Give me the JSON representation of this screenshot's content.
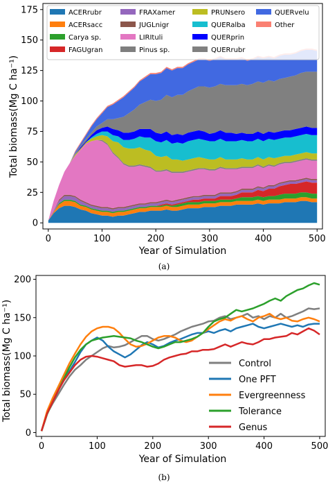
{
  "chart_data": [
    {
      "type": "area",
      "panel_label": "(a)",
      "xlabel": "Year of Simulation",
      "ylabel": "Total biomass(Mg C ha⁻¹)",
      "xlim": [
        -10,
        510
      ],
      "ylim": [
        -5,
        180
      ],
      "xticks": [
        0,
        100,
        200,
        300,
        400,
        500
      ],
      "yticks": [
        0,
        25,
        50,
        75,
        100,
        125,
        150,
        175
      ],
      "grid": false,
      "legend": "top",
      "x": [
        0,
        10,
        20,
        30,
        40,
        50,
        60,
        70,
        80,
        90,
        100,
        110,
        120,
        130,
        140,
        150,
        160,
        170,
        180,
        190,
        200,
        210,
        220,
        230,
        240,
        250,
        260,
        270,
        280,
        290,
        300,
        310,
        320,
        330,
        340,
        350,
        360,
        370,
        380,
        390,
        400,
        410,
        420,
        430,
        440,
        450,
        460,
        470,
        480,
        490,
        500
      ],
      "series": [
        {
          "name": "ACERrubr",
          "color": "#1f77b4",
          "values": [
            2,
            8,
            12,
            14,
            14,
            13,
            11,
            10,
            8,
            7,
            6,
            6,
            5,
            6,
            6,
            7,
            8,
            9,
            9,
            10,
            10,
            10,
            11,
            10,
            10,
            11,
            12,
            12,
            12,
            13,
            13,
            13,
            14,
            14,
            14,
            15,
            15,
            15,
            15,
            16,
            15,
            16,
            16,
            16,
            17,
            17,
            17,
            18,
            18,
            17,
            17
          ]
        },
        {
          "name": "ACERsacc",
          "color": "#ff7f0e",
          "values": [
            0,
            1,
            3,
            4,
            4,
            4,
            3,
            3,
            3,
            3,
            3,
            3,
            3,
            3,
            3,
            3,
            3,
            3,
            3,
            3,
            3,
            3,
            3,
            3,
            3,
            3,
            3,
            3,
            3,
            3,
            3,
            3,
            3,
            3,
            3,
            3,
            3,
            3,
            3,
            3,
            3,
            3,
            3,
            3,
            3,
            3,
            3,
            3,
            3,
            3,
            3
          ]
        },
        {
          "name": "Carya sp.",
          "color": "#2ca02c",
          "values": [
            0,
            0,
            1,
            1,
            1,
            1,
            1,
            1,
            1,
            1,
            1,
            1,
            1,
            1,
            1,
            1,
            1,
            1,
            1,
            1,
            1,
            1,
            1,
            1,
            2,
            2,
            2,
            2,
            2,
            2,
            2,
            2,
            2,
            2,
            2,
            2,
            3,
            3,
            3,
            3,
            3,
            3,
            3,
            4,
            4,
            4,
            4,
            4,
            4,
            4,
            4
          ]
        },
        {
          "name": "FAGUgran",
          "color": "#d62728",
          "values": [
            0,
            0,
            0,
            0,
            0,
            0,
            0,
            0,
            0,
            0,
            0,
            0,
            0,
            0,
            0,
            0,
            0,
            0,
            0,
            0,
            0,
            1,
            1,
            1,
            1,
            1,
            1,
            2,
            2,
            2,
            2,
            2,
            3,
            3,
            3,
            3,
            4,
            4,
            4,
            5,
            5,
            6,
            6,
            7,
            7,
            8,
            8,
            8,
            9,
            9,
            9
          ]
        },
        {
          "name": "FRAXamer",
          "color": "#9467bd",
          "values": [
            0,
            1,
            2,
            3,
            3,
            3,
            3,
            2,
            2,
            2,
            2,
            2,
            2,
            2,
            2,
            2,
            2,
            2,
            2,
            2,
            2,
            2,
            2,
            2,
            2,
            2,
            2,
            2,
            2,
            2,
            2,
            2,
            2,
            2,
            2,
            2,
            2,
            2,
            2,
            2,
            2,
            2,
            2,
            2,
            2,
            2,
            2,
            2,
            2,
            2,
            2
          ]
        },
        {
          "name": "JUGLnigr",
          "color": "#8c564b",
          "values": [
            0,
            0,
            1,
            1,
            1,
            1,
            1,
            1,
            1,
            1,
            1,
            1,
            1,
            1,
            1,
            1,
            1,
            1,
            1,
            1,
            1,
            1,
            1,
            1,
            1,
            1,
            1,
            1,
            1,
            1,
            1,
            1,
            1,
            1,
            1,
            1,
            1,
            1,
            1,
            1,
            1,
            1,
            1,
            1,
            1,
            1,
            1,
            1,
            1,
            1,
            1
          ]
        },
        {
          "name": "LIRItuli",
          "color": "#e377c2",
          "values": [
            0,
            8,
            12,
            19,
            26,
            33,
            41,
            48,
            52,
            54,
            54,
            51,
            45,
            40,
            35,
            32,
            31,
            31,
            30,
            28,
            25,
            24,
            24,
            23,
            22,
            21,
            21,
            21,
            22,
            21,
            20,
            20,
            20,
            19,
            19,
            18,
            17,
            17,
            17,
            17,
            16,
            16,
            15,
            15,
            15,
            14,
            15,
            15,
            15,
            15,
            15
          ]
        },
        {
          "name": "Pinus sp.",
          "color": "#7f7f7f",
          "values": [
            0,
            0,
            0,
            0,
            0,
            0,
            0,
            0,
            0,
            0,
            1,
            1,
            1,
            1,
            1,
            1,
            1,
            1,
            1,
            1,
            1,
            1,
            1,
            1,
            1,
            1,
            1,
            1,
            1,
            1,
            1,
            1,
            1,
            1,
            1,
            1,
            1,
            1,
            1,
            1,
            1,
            1,
            1,
            1,
            1,
            1,
            1,
            1,
            1,
            1,
            1
          ]
        },
        {
          "name": "PRUNsero",
          "color": "#bcbd22",
          "values": [
            0,
            0,
            0,
            0,
            0,
            1,
            1,
            1,
            2,
            3,
            4,
            6,
            9,
            12,
            13,
            14,
            14,
            14,
            13,
            13,
            12,
            11,
            11,
            10,
            10,
            9,
            9,
            9,
            9,
            8,
            8,
            8,
            8,
            7,
            7,
            7,
            7,
            6,
            6,
            6,
            6,
            6,
            6,
            5,
            5,
            5,
            5,
            5,
            5,
            5,
            5
          ]
        },
        {
          "name": "QUERalba",
          "color": "#17becf",
          "values": [
            0,
            0,
            0,
            0,
            0,
            0,
            0,
            0,
            1,
            2,
            3,
            4,
            5,
            5,
            6,
            7,
            8,
            9,
            10,
            11,
            12,
            12,
            13,
            13,
            14,
            14,
            15,
            15,
            15,
            15,
            15,
            15,
            15,
            15,
            15,
            15,
            15,
            15,
            15,
            15,
            15,
            15,
            15,
            15,
            15,
            15,
            15,
            15,
            15,
            15,
            15
          ]
        },
        {
          "name": "QUERprin",
          "color": "#0000ff",
          "values": [
            0,
            0,
            0,
            0,
            0,
            0,
            1,
            1,
            2,
            3,
            3,
            4,
            5,
            5,
            6,
            6,
            6,
            6,
            7,
            7,
            7,
            7,
            7,
            7,
            7,
            7,
            7,
            7,
            7,
            7,
            6,
            7,
            7,
            7,
            7,
            6,
            6,
            6,
            6,
            6,
            6,
            6,
            6,
            6,
            6,
            6,
            6,
            6,
            6,
            6,
            6
          ]
        },
        {
          "name": "QUERrubr",
          "color": "#808080",
          "values": [
            0,
            0,
            0,
            0,
            0,
            1,
            1,
            2,
            2,
            3,
            4,
            6,
            8,
            10,
            13,
            16,
            18,
            20,
            22,
            24,
            26,
            28,
            30,
            31,
            32,
            33,
            34,
            35,
            36,
            37,
            38,
            38,
            38,
            39,
            39,
            40,
            40,
            40,
            41,
            41,
            42,
            42,
            42,
            43,
            43,
            44,
            44,
            45,
            45,
            46,
            46
          ]
        },
        {
          "name": "QUERvelu",
          "color": "#4169e1",
          "values": [
            0,
            0,
            0,
            0,
            0,
            1,
            2,
            3,
            5,
            6,
            8,
            10,
            12,
            14,
            16,
            17,
            18,
            19,
            20,
            21,
            22,
            22,
            22,
            22,
            22,
            22,
            22,
            22,
            22,
            22,
            22,
            22,
            22,
            21,
            21,
            21,
            21,
            20,
            20,
            20,
            20,
            19,
            19,
            19,
            19,
            18,
            18,
            18,
            18,
            18,
            17
          ]
        },
        {
          "name": "Other",
          "color": "#fa8072",
          "values": [
            0,
            0,
            0,
            0,
            0,
            1,
            1,
            1,
            1,
            1,
            1,
            1,
            1,
            1,
            1,
            1,
            1,
            1,
            1,
            1,
            1,
            1,
            1,
            1,
            1,
            1,
            1,
            1,
            1,
            1,
            1,
            1,
            1,
            1,
            1,
            1,
            1,
            1,
            1,
            1,
            1,
            1,
            1,
            1,
            1,
            1,
            1,
            1,
            1,
            1,
            1
          ]
        }
      ]
    },
    {
      "type": "line",
      "panel_label": "(b)",
      "xlabel": "Year of Simulation",
      "ylabel": "Total biomass(Mg C ha⁻¹)",
      "xlim": [
        -10,
        510
      ],
      "ylim": [
        -5,
        205
      ],
      "xticks": [
        0,
        100,
        200,
        300,
        400,
        500
      ],
      "yticks": [
        0,
        50,
        100,
        150,
        200
      ],
      "grid": false,
      "legend": "center-right",
      "x": [
        0,
        10,
        20,
        30,
        40,
        50,
        60,
        70,
        80,
        90,
        100,
        110,
        120,
        130,
        140,
        150,
        160,
        170,
        180,
        190,
        200,
        210,
        220,
        230,
        240,
        250,
        260,
        270,
        280,
        290,
        300,
        310,
        320,
        330,
        340,
        350,
        360,
        370,
        380,
        390,
        400,
        410,
        420,
        430,
        440,
        450,
        460,
        470,
        480,
        490,
        500
      ],
      "series": [
        {
          "name": "Control",
          "color": "#7f7f7f",
          "values": [
            2,
            25,
            38,
            50,
            62,
            73,
            82,
            88,
            95,
            100,
            105,
            110,
            113,
            111,
            112,
            114,
            118,
            122,
            126,
            126,
            122,
            120,
            122,
            125,
            128,
            132,
            135,
            138,
            140,
            142,
            145,
            146,
            150,
            152,
            148,
            150,
            152,
            155,
            150,
            152,
            148,
            152,
            150,
            155,
            150,
            152,
            155,
            158,
            162,
            161,
            162
          ]
        },
        {
          "name": "One PFT",
          "color": "#1f77b4",
          "values": [
            2,
            26,
            40,
            55,
            68,
            80,
            92,
            105,
            115,
            120,
            124,
            120,
            112,
            106,
            102,
            98,
            102,
            108,
            114,
            118,
            115,
            111,
            113,
            117,
            120,
            122,
            125,
            128,
            130,
            130,
            132,
            130,
            133,
            135,
            132,
            136,
            138,
            140,
            142,
            138,
            136,
            138,
            140,
            142,
            140,
            138,
            140,
            138,
            141,
            142,
            142
          ]
        },
        {
          "name": "Evergreenness",
          "color": "#ff7f0e",
          "values": [
            2,
            28,
            45,
            60,
            75,
            90,
            103,
            115,
            125,
            132,
            136,
            138,
            138,
            136,
            130,
            122,
            115,
            112,
            113,
            116,
            120,
            124,
            126,
            126,
            124,
            120,
            118,
            120,
            125,
            130,
            135,
            140,
            145,
            148,
            146,
            150,
            152,
            148,
            145,
            150,
            152,
            155,
            150,
            148,
            150,
            146,
            145,
            148,
            150,
            148,
            145
          ]
        },
        {
          "name": "Tolerance",
          "color": "#2ca02c",
          "values": [
            2,
            24,
            40,
            55,
            70,
            85,
            98,
            108,
            115,
            120,
            122,
            124,
            125,
            126,
            125,
            124,
            123,
            120,
            118,
            115,
            112,
            110,
            112,
            115,
            118,
            118,
            120,
            122,
            125,
            130,
            138,
            145,
            148,
            150,
            155,
            160,
            158,
            160,
            162,
            165,
            168,
            172,
            175,
            172,
            178,
            182,
            186,
            188,
            192,
            195,
            193
          ]
        },
        {
          "name": "Genus",
          "color": "#d62728",
          "values": [
            2,
            25,
            40,
            55,
            68,
            78,
            88,
            95,
            99,
            100,
            99,
            97,
            95,
            93,
            88,
            86,
            87,
            88,
            88,
            86,
            87,
            90,
            95,
            98,
            100,
            102,
            103,
            106,
            106,
            108,
            108,
            109,
            112,
            115,
            112,
            115,
            118,
            116,
            115,
            118,
            122,
            122,
            124,
            125,
            126,
            130,
            128,
            132,
            136,
            133,
            128
          ]
        }
      ]
    }
  ]
}
